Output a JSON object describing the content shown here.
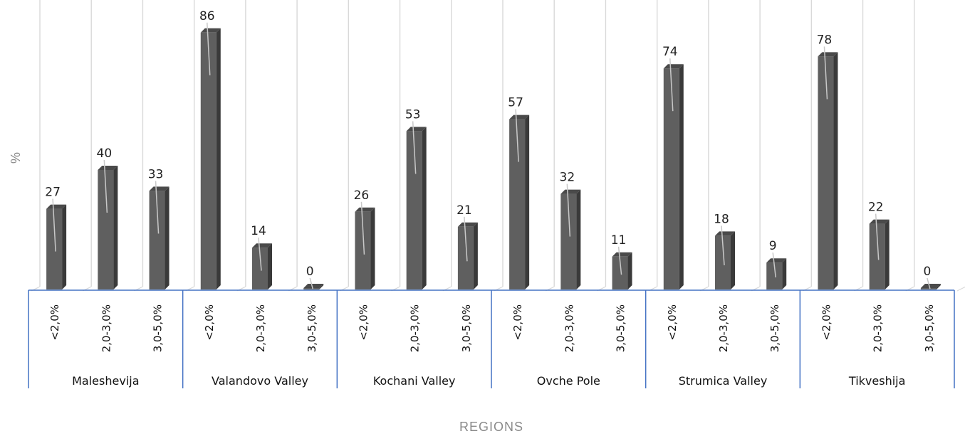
{
  "chart_data": {
    "type": "bar",
    "style": "3d-column",
    "xlabel": "REGIONS",
    "ylabel": "%",
    "ylim": [
      0,
      100
    ],
    "grid": "vertical",
    "legend": "none",
    "groups": [
      "Maleshevija",
      "Valandovo Valley",
      "Kochani Valley",
      "Ovche Pole",
      "Strumica Valley",
      "Tikveshija"
    ],
    "subcategories": [
      "<2,0%",
      "2,0-3,0%",
      "3,0-5,0%"
    ],
    "values": [
      [
        27,
        40,
        33
      ],
      [
        86,
        14,
        0
      ],
      [
        26,
        53,
        21
      ],
      [
        57,
        32,
        11
      ],
      [
        74,
        18,
        9
      ],
      [
        78,
        22,
        0
      ]
    ],
    "colors": {
      "bar": "#5f5f5f",
      "bar_side": "#3a3a3a",
      "bar_top": "#4a4a4a",
      "grid": "#d9d9d9",
      "group_axis": "#4472c4",
      "leader": "#c8c8c8"
    }
  }
}
